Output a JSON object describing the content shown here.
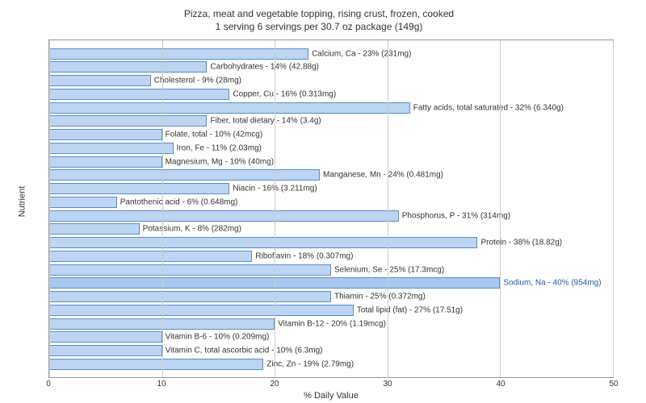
{
  "chart": {
    "type": "bar-horizontal",
    "title_line1": "Pizza, meat and vegetable topping, rising crust, frozen, cooked",
    "title_line2": "1 serving 6 servings per 30.7 oz package (149g)",
    "xlabel": "% Daily Value",
    "ylabel": "Nutrient",
    "xlim": [
      0,
      50
    ],
    "xtick_step": 10,
    "xticks": [
      0,
      10,
      20,
      30,
      40,
      50
    ],
    "bar_color": "#bcd5f2",
    "bar_border": "#5b8dc9",
    "highlight_color": "#a8c8ef",
    "highlight_text": "#1f5fa8",
    "background_color": "#ffffff",
    "grid_color": "#cccccc",
    "title_fontsize": 12,
    "label_fontsize": 11,
    "tick_fontsize": 10,
    "bar_label_fontsize": 10,
    "nutrients": [
      {
        "name": "Calcium, Ca",
        "pct": 23,
        "amount": "231mg",
        "highlight": false
      },
      {
        "name": "Carbohydrates",
        "pct": 14,
        "amount": "42.88g",
        "highlight": false
      },
      {
        "name": "Cholesterol",
        "pct": 9,
        "amount": "28mg",
        "highlight": false
      },
      {
        "name": "Copper, Cu",
        "pct": 16,
        "amount": "0.313mg",
        "highlight": false
      },
      {
        "name": "Fatty acids, total saturated",
        "pct": 32,
        "amount": "6.340g",
        "highlight": false
      },
      {
        "name": "Fiber, total dietary",
        "pct": 14,
        "amount": "3.4g",
        "highlight": false
      },
      {
        "name": "Folate, total",
        "pct": 10,
        "amount": "42mcg",
        "highlight": false
      },
      {
        "name": "Iron, Fe",
        "pct": 11,
        "amount": "2.03mg",
        "highlight": false
      },
      {
        "name": "Magnesium, Mg",
        "pct": 10,
        "amount": "40mg",
        "highlight": false
      },
      {
        "name": "Manganese, Mn",
        "pct": 24,
        "amount": "0.481mg",
        "highlight": false
      },
      {
        "name": "Niacin",
        "pct": 16,
        "amount": "3.211mg",
        "highlight": false
      },
      {
        "name": "Pantothenic acid",
        "pct": 6,
        "amount": "0.648mg",
        "highlight": false
      },
      {
        "name": "Phosphorus, P",
        "pct": 31,
        "amount": "314mg",
        "highlight": false
      },
      {
        "name": "Potassium, K",
        "pct": 8,
        "amount": "282mg",
        "highlight": false
      },
      {
        "name": "Protein",
        "pct": 38,
        "amount": "18.82g",
        "highlight": false
      },
      {
        "name": "Riboflavin",
        "pct": 18,
        "amount": "0.307mg",
        "highlight": false
      },
      {
        "name": "Selenium, Se",
        "pct": 25,
        "amount": "17.3mcg",
        "highlight": false
      },
      {
        "name": "Sodium, Na",
        "pct": 40,
        "amount": "954mg",
        "highlight": true
      },
      {
        "name": "Thiamin",
        "pct": 25,
        "amount": "0.372mg",
        "highlight": false
      },
      {
        "name": "Total lipid (fat)",
        "pct": 27,
        "amount": "17.51g",
        "highlight": false
      },
      {
        "name": "Vitamin B-12",
        "pct": 20,
        "amount": "1.19mcg",
        "highlight": false
      },
      {
        "name": "Vitamin B-6",
        "pct": 10,
        "amount": "0.209mg",
        "highlight": false
      },
      {
        "name": "Vitamin C, total ascorbic acid",
        "pct": 10,
        "amount": "6.3mg",
        "highlight": false
      },
      {
        "name": "Zinc, Zn",
        "pct": 19,
        "amount": "2.79mg",
        "highlight": false
      }
    ]
  }
}
